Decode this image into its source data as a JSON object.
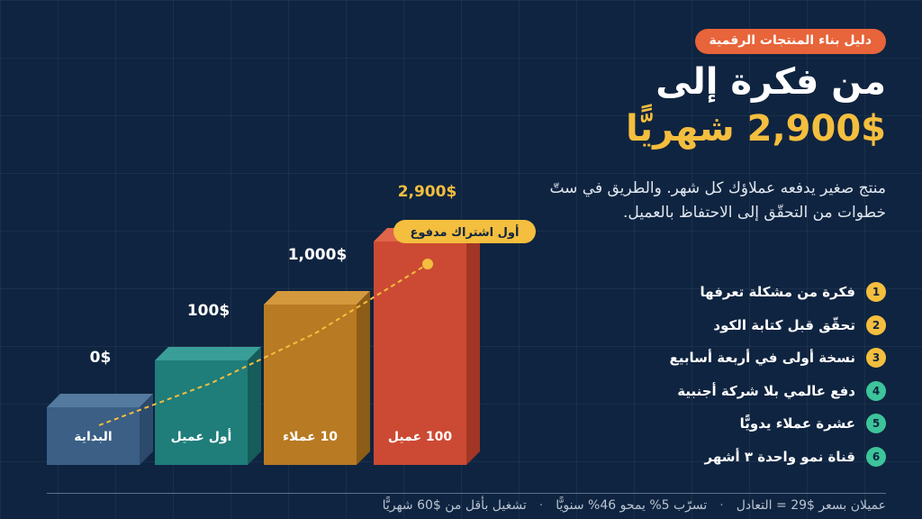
{
  "tag": "دليل بناء المنتجات الرقمية",
  "title": {
    "line1": "من فكرة إلى",
    "line2": "2,900$ شهريًّا"
  },
  "description": "منتج صغير يدفعه عملاؤك كل شهر. والطريق في ستّ خطوات من التحقّق إلى الاحتفاظ بالعميل.",
  "stages": [
    {
      "label": "البداية",
      "amount": "0$"
    },
    {
      "label": "أول عميل",
      "amount": "100$"
    },
    {
      "label": "10 عملاء",
      "amount": "1,000$"
    },
    {
      "label": "100 عميل",
      "amount": "2,900$"
    }
  ],
  "callout": "أول اشتراك مدفوع",
  "steps": [
    {
      "number": "1",
      "text": "فكرة من مشكلة تعرفها"
    },
    {
      "number": "2",
      "text": "تحقّق قبل كتابة الكود"
    },
    {
      "number": "3",
      "text": "نسخة أولى في أربعة أسابيع"
    },
    {
      "number": "4",
      "text": "دفع عالمي بلا شركة أجنبية"
    },
    {
      "number": "5",
      "text": "عشرة عملاء يدويًّا"
    },
    {
      "number": "6",
      "text": "قناة نمو واحدة ٣ أشهر"
    }
  ],
  "footer": [
    "عميلان بسعر $29 = التعادل",
    "تسرّب 5% يمحو 46% سنويًّا",
    "تشغيل بأقل من $60 شهريًّا"
  ]
}
